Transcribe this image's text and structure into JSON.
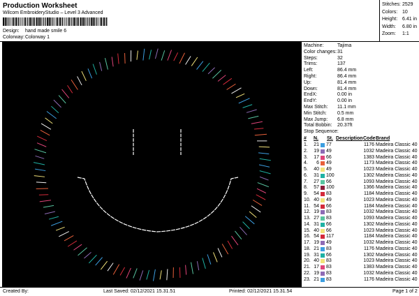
{
  "header": {
    "title": "Production Worksheet",
    "subtitle": "Wilcom EmbroideryStudio – Level 3 Advanced",
    "design_label": "Design:",
    "design": "hand made smile 6",
    "colorway_label": "Colorway:",
    "colorway": "Colorway 1"
  },
  "summary": [
    {
      "label": "Stitches:",
      "value": 2529
    },
    {
      "label": "Colors:",
      "value": 10
    },
    {
      "label": "Height:",
      "value": "6.41 in"
    },
    {
      "label": "Width:",
      "value": "6.80 in"
    },
    {
      "label": "Zoom:",
      "value": "1:1"
    }
  ],
  "machine_info": [
    {
      "label": "Machine:",
      "value": "Tajima"
    },
    {
      "label": "Color changes:",
      "value": 31
    },
    {
      "label": "Steps:",
      "value": 32
    },
    {
      "label": "Trims:",
      "value": 137
    },
    {
      "label": "Left:",
      "value": "86.4 mm"
    },
    {
      "label": "Right:",
      "value": "86.4 mm"
    },
    {
      "label": "Up:",
      "value": "81.4 mm"
    },
    {
      "label": "Down:",
      "value": "81.4 mm"
    },
    {
      "label": "EndX:",
      "value": "0.00 in"
    },
    {
      "label": "EndY:",
      "value": "0.00 in"
    },
    {
      "label": "Max Stitch:",
      "value": "11.1 mm"
    },
    {
      "label": "Min Stitch:",
      "value": "0.5 mm"
    },
    {
      "label": "Max Jump:",
      "value": "6.8 mm"
    },
    {
      "label": "Total Bobbin:",
      "value": "20.37ft"
    }
  ],
  "stop_sequence": {
    "title": "Stop Sequence:",
    "columns": [
      "#",
      "N.",
      "St.",
      "Description",
      "Code",
      "Brand"
    ],
    "rows": [
      {
        "no": "1.",
        "needle": 21,
        "color": "#3c9ee0",
        "stitches": 77,
        "code": 1176,
        "brand": "Madeira Classic 40"
      },
      {
        "no": "2.",
        "needle": 19,
        "color": "#8e6bb5",
        "stitches": 49,
        "code": 1032,
        "brand": "Madeira Classic 40"
      },
      {
        "no": "3.",
        "needle": 17,
        "color": "#e0457a",
        "stitches": 66,
        "code": 1383,
        "brand": "Madeira Classic 40"
      },
      {
        "no": "4.",
        "needle": 6,
        "color": "#e8603a",
        "stitches": 49,
        "code": 1173,
        "brand": "Madeira Classic 40"
      },
      {
        "no": "5.",
        "needle": 40,
        "color": "#f3e37a",
        "stitches": 49,
        "code": 1023,
        "brand": "Madeira Classic 40"
      },
      {
        "no": "6.",
        "needle": 31,
        "color": "#1fb2a4",
        "stitches": 100,
        "code": 1302,
        "brand": "Madeira Classic 40"
      },
      {
        "no": "7.",
        "needle": 27,
        "color": "#58c4a0",
        "stitches": 66,
        "code": 1093,
        "brand": "Madeira Classic 40"
      },
      {
        "no": "8.",
        "needle": 57,
        "color": "#8a1c3a",
        "stitches": 100,
        "code": 1366,
        "brand": "Madeira Classic 40"
      },
      {
        "no": "9.",
        "needle": 54,
        "color": "#d42a3a",
        "stitches": 83,
        "code": 1184,
        "brand": "Madeira Classic 40"
      },
      {
        "no": "10.",
        "needle": 40,
        "color": "#f3e37a",
        "stitches": 49,
        "code": 1023,
        "brand": "Madeira Classic 40"
      },
      {
        "no": "11.",
        "needle": 54,
        "color": "#d42a3a",
        "stitches": 66,
        "code": 1184,
        "brand": "Madeira Classic 40"
      },
      {
        "no": "12.",
        "needle": 19,
        "color": "#8e6bb5",
        "stitches": 83,
        "code": 1032,
        "brand": "Madeira Classic 40"
      },
      {
        "no": "13.",
        "needle": 27,
        "color": "#58c4a0",
        "stitches": 83,
        "code": 1093,
        "brand": "Madeira Classic 40"
      },
      {
        "no": "14.",
        "needle": 31,
        "color": "#1fb2a4",
        "stitches": 66,
        "code": 1302,
        "brand": "Madeira Classic 40"
      },
      {
        "no": "15.",
        "needle": 40,
        "color": "#f3e37a",
        "stitches": 66,
        "code": 1023,
        "brand": "Madeira Classic 40"
      },
      {
        "no": "16.",
        "needle": 54,
        "color": "#d42a3a",
        "stitches": 117,
        "code": 1184,
        "brand": "Madeira Classic 40"
      },
      {
        "no": "17.",
        "needle": 19,
        "color": "#8e6bb5",
        "stitches": 49,
        "code": 1032,
        "brand": "Madeira Classic 40"
      },
      {
        "no": "18.",
        "needle": 21,
        "color": "#3c9ee0",
        "stitches": 83,
        "code": 1176,
        "brand": "Madeira Classic 40"
      },
      {
        "no": "19.",
        "needle": 31,
        "color": "#1fb2a4",
        "stitches": 66,
        "code": 1302,
        "brand": "Madeira Classic 40"
      },
      {
        "no": "20.",
        "needle": 40,
        "color": "#f3e37a",
        "stitches": 83,
        "code": 1023,
        "brand": "Madeira Classic 40"
      },
      {
        "no": "21.",
        "needle": 17,
        "color": "#e0457a",
        "stitches": 83,
        "code": 1383,
        "brand": "Madeira Classic 40"
      },
      {
        "no": "22.",
        "needle": 19,
        "color": "#8e6bb5",
        "stitches": 83,
        "code": 1032,
        "brand": "Madeira Classic 40"
      },
      {
        "no": "23.",
        "needle": 21,
        "color": "#3c9ee0",
        "stitches": 83,
        "code": 1176,
        "brand": "Madeira Classic 40"
      }
    ]
  },
  "footer": {
    "created": "Created By:",
    "saved": "Last Saved: 02/12/2021 15.31.51",
    "printed": "Printed: 02/12/2021 15.31.54",
    "page": "Page 1 of 2"
  }
}
